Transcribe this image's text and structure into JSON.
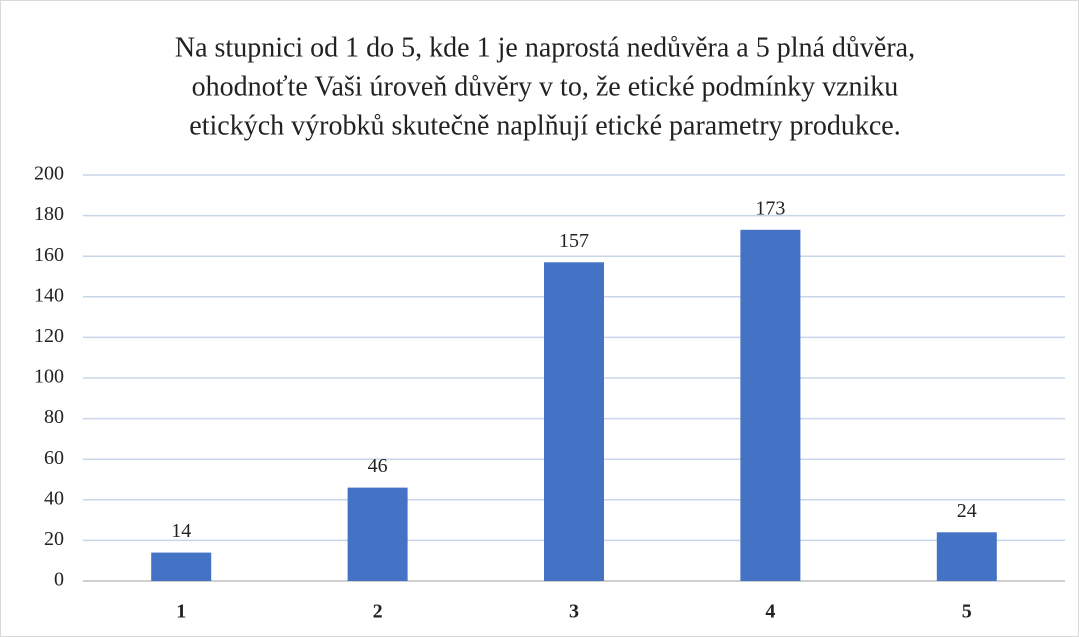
{
  "chart_data": {
    "type": "bar",
    "title": [
      "Na stupnici od 1 do 5, kde 1 je naprostá nedůvěra a 5 plná důvěra,",
      "ohodnoťte Vaši úroveň důvěry v to, že etické podmínky vzniku",
      "etických výrobků skutečně naplňují etické parametry produkce."
    ],
    "categories": [
      "1",
      "2",
      "3",
      "4",
      "5"
    ],
    "values": [
      14,
      46,
      157,
      173,
      24
    ],
    "color": "#4472c4",
    "ylim": [
      0,
      200
    ],
    "yticks": [
      0,
      20,
      40,
      60,
      80,
      100,
      120,
      140,
      160,
      180,
      200
    ],
    "grid": true
  }
}
